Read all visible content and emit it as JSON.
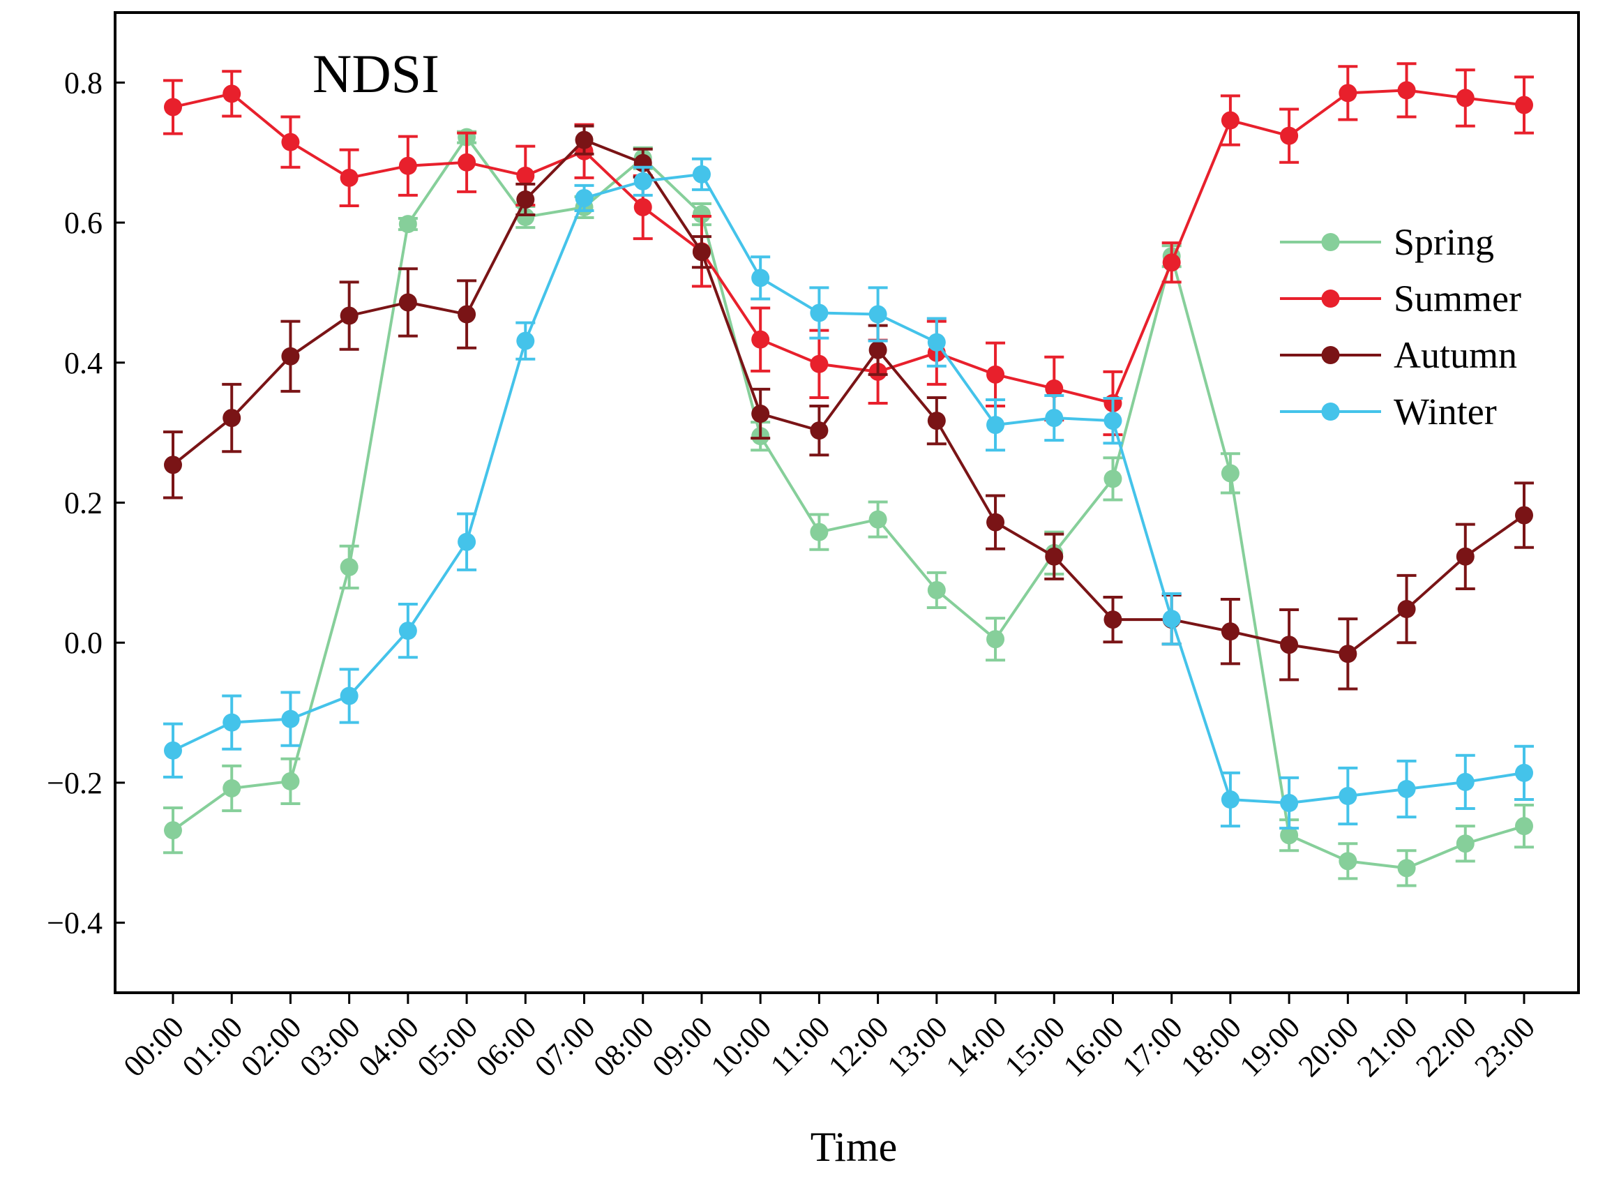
{
  "chart_data": {
    "type": "line",
    "title": "NDSI",
    "xlabel": "Time",
    "ylabel": "",
    "ylim": [
      -0.5,
      0.9
    ],
    "yticks": [
      -0.4,
      -0.2,
      0.0,
      0.2,
      0.4,
      0.6,
      0.8
    ],
    "ytick_labels": [
      "−0.4",
      "−0.2",
      "0.0",
      "0.2",
      "0.4",
      "0.6",
      "0.8"
    ],
    "grid": false,
    "legend_position": "right",
    "categories": [
      "00:00",
      "01:00",
      "02:00",
      "03:00",
      "04:00",
      "05:00",
      "06:00",
      "07:00",
      "08:00",
      "09:00",
      "10:00",
      "11:00",
      "12:00",
      "13:00",
      "14:00",
      "15:00",
      "16:00",
      "17:00",
      "18:00",
      "19:00",
      "20:00",
      "21:00",
      "22:00",
      "23:00"
    ],
    "series": [
      {
        "name": "Spring",
        "color": "#86cf9a",
        "values": [
          -0.268,
          -0.208,
          -0.198,
          0.108,
          0.598,
          0.722,
          0.608,
          0.622,
          0.692,
          0.612,
          0.295,
          0.158,
          0.176,
          0.075,
          0.005,
          0.128,
          0.234,
          0.552,
          0.242,
          -0.275,
          -0.312,
          -0.322,
          -0.287,
          -0.262
        ],
        "errors": [
          0.032,
          0.032,
          0.032,
          0.03,
          0.008,
          0.008,
          0.015,
          0.015,
          0.015,
          0.015,
          0.02,
          0.025,
          0.025,
          0.025,
          0.03,
          0.03,
          0.03,
          0.015,
          0.028,
          0.022,
          0.025,
          0.025,
          0.025,
          0.03
        ]
      },
      {
        "name": "Summer",
        "color": "#e8202c",
        "values": [
          0.765,
          0.784,
          0.715,
          0.664,
          0.681,
          0.686,
          0.667,
          0.702,
          0.622,
          0.559,
          0.433,
          0.398,
          0.387,
          0.414,
          0.383,
          0.363,
          0.342,
          0.543,
          0.746,
          0.724,
          0.785,
          0.789,
          0.778,
          0.768
        ],
        "errors": [
          0.038,
          0.032,
          0.036,
          0.04,
          0.042,
          0.042,
          0.042,
          0.038,
          0.045,
          0.05,
          0.045,
          0.048,
          0.045,
          0.045,
          0.045,
          0.045,
          0.045,
          0.028,
          0.035,
          0.038,
          0.038,
          0.038,
          0.04,
          0.04
        ]
      },
      {
        "name": "Autumn",
        "color": "#7a1416",
        "values": [
          0.254,
          0.321,
          0.409,
          0.467,
          0.486,
          0.469,
          0.633,
          0.718,
          0.685,
          0.558,
          0.327,
          0.303,
          0.418,
          0.317,
          0.172,
          0.123,
          0.033,
          0.033,
          0.016,
          -0.003,
          -0.016,
          0.048,
          0.123,
          0.182
        ],
        "errors": [
          0.047,
          0.048,
          0.05,
          0.048,
          0.048,
          0.048,
          0.022,
          0.02,
          0.02,
          0.022,
          0.035,
          0.035,
          0.035,
          0.033,
          0.038,
          0.032,
          0.032,
          0.035,
          0.046,
          0.05,
          0.05,
          0.048,
          0.046,
          0.046
        ]
      },
      {
        "name": "Winter",
        "color": "#44c3ea",
        "values": [
          -0.154,
          -0.114,
          -0.109,
          -0.076,
          0.017,
          0.144,
          0.431,
          0.635,
          0.659,
          0.669,
          0.521,
          0.471,
          0.469,
          0.429,
          0.311,
          0.321,
          0.317,
          0.034,
          -0.224,
          -0.229,
          -0.219,
          -0.209,
          -0.199,
          -0.186
        ],
        "errors": [
          0.038,
          0.038,
          0.038,
          0.038,
          0.038,
          0.04,
          0.026,
          0.018,
          0.02,
          0.022,
          0.03,
          0.036,
          0.038,
          0.034,
          0.036,
          0.032,
          0.032,
          0.036,
          0.038,
          0.036,
          0.04,
          0.04,
          0.038,
          0.038
        ]
      }
    ]
  }
}
